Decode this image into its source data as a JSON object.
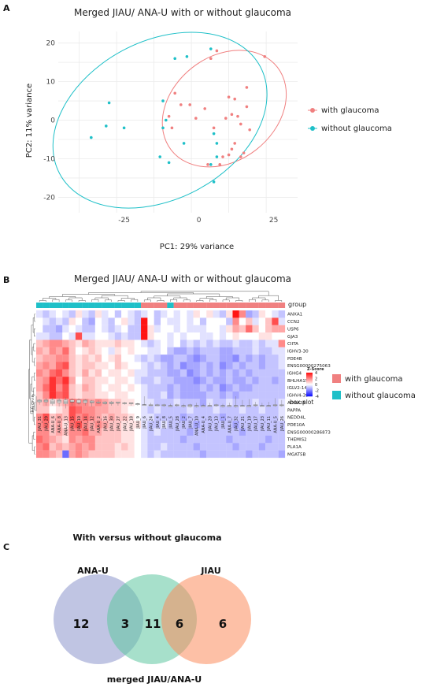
{
  "panels": {
    "a": "A",
    "b": "B",
    "c": "C"
  },
  "colors": {
    "with": "#f08080",
    "without": "#1fc0c8",
    "venn_ana": "#8d96cc",
    "venn_merged": "#5fc7a1",
    "venn_jiau": "#fb8c5d"
  },
  "chart_data": [
    {
      "type": "scatter",
      "title": "Merged JIAU/ ANA-U with or without glaucoma",
      "xlabel": "PC1: 29% variance",
      "ylabel": "PC2: 11% variance",
      "xlim": [
        -47,
        33
      ],
      "ylim": [
        -24,
        23
      ],
      "xticks": [
        -25,
        0,
        25
      ],
      "yticks": [
        20,
        10,
        0,
        -10,
        -20
      ],
      "grid": true,
      "legend_position": "right",
      "series": [
        {
          "name": "with glaucoma",
          "color": "#f08080",
          "points": [
            [
              -8,
              7
            ],
            [
              -6,
              4
            ],
            [
              -3,
              4
            ],
            [
              -10,
              1
            ],
            [
              -9,
              -2
            ],
            [
              -1,
              0.5
            ],
            [
              2,
              3
            ],
            [
              4,
              16
            ],
            [
              6,
              18
            ],
            [
              22,
              16.5
            ],
            [
              10,
              6
            ],
            [
              12,
              5.5
            ],
            [
              16,
              3.5
            ],
            [
              11,
              1.5
            ],
            [
              13,
              1
            ],
            [
              9,
              0.5
            ],
            [
              14,
              -1
            ],
            [
              17,
              -2.5
            ],
            [
              5,
              -2
            ],
            [
              12,
              -6
            ],
            [
              11,
              -7.5
            ],
            [
              10,
              -9
            ],
            [
              8,
              -9.5
            ],
            [
              15,
              -8.5
            ],
            [
              14,
              -9.5
            ],
            [
              7,
              -11.5
            ],
            [
              3,
              -11.5
            ],
            [
              16,
              8.5
            ]
          ]
        },
        {
          "name": "without glaucoma",
          "color": "#1fc0c8",
          "points": [
            [
              -4,
              16.5
            ],
            [
              4,
              18.5
            ],
            [
              -8,
              16
            ],
            [
              -30,
              4.5
            ],
            [
              -12,
              5
            ],
            [
              -11,
              0
            ],
            [
              -31,
              -1.5
            ],
            [
              -25,
              -2
            ],
            [
              -36,
              -4.5
            ],
            [
              -12,
              -2
            ],
            [
              -5,
              -6
            ],
            [
              5,
              -3.5
            ],
            [
              6,
              -6
            ],
            [
              -13,
              -9.5
            ],
            [
              -10,
              -11
            ],
            [
              6,
              -9.5
            ],
            [
              4,
              -11.5
            ],
            [
              5,
              -16
            ]
          ]
        }
      ],
      "annotations": [
        "ellipse: with glaucoma",
        "ellipse: without glaucoma"
      ]
    },
    {
      "type": "heatmap",
      "title": "Merged JIAU/ ANA-U with or without glaucoma",
      "annotation_label": "group",
      "scale_title": "Z-Score",
      "scale_ticks": [
        "4",
        "2",
        "0",
        "-2",
        "-4"
      ],
      "value_range": [
        -4,
        4
      ],
      "boxplot_label": "box plot",
      "box_ticks": [
        "4",
        "2",
        "0",
        "-2",
        "-4"
      ],
      "genes": [
        "ANXA1",
        "CCN2",
        "USP6",
        "GJA3",
        "CIITA",
        "IGHV3-30",
        "PDE4B",
        "ENSG00000275063",
        "IGHG4",
        "BHLHA15",
        "IGLV2-14",
        "IGHV4-39",
        "ADRA2A",
        "PAPPA",
        "NEDD4L",
        "PDE10A",
        "ENSG00000286873",
        "THEMIS2",
        "PLA1A",
        "MGAT5B"
      ],
      "columns": [
        "JIAU_31",
        "JIAU_29",
        "ANA-U_6",
        "ANA-U_8",
        "ANA-U_13",
        "JIAU_15",
        "JIAU_10",
        "JIAU_14",
        "JIAU_12",
        "ANA-U_2",
        "JIAU_16",
        "JIAU_30",
        "JIAU_27",
        "JIAU_22",
        "JIAU_18",
        "JIAU_9",
        "JIAU_6",
        "JIAU_24",
        "JIAU_4",
        "JIAU_8",
        "JIAU_5",
        "JIAU_28",
        "JIAU_2",
        "JIAU_7",
        "ANA-U_10",
        "ANA-U_4",
        "JIAU_20",
        "JIAU_13",
        "JIAU_1",
        "ANA-U_7",
        "JIAU_32",
        "JIAU_21",
        "JIAU_19",
        "JIAU_17",
        "JIAU_23",
        "JIAU_11",
        "ANA-U_5",
        "JIAU_26"
      ],
      "group": [
        "without",
        "without",
        "without",
        "without",
        "without",
        "without",
        "without",
        "without",
        "without",
        "without",
        "without",
        "without",
        "without",
        "without",
        "without",
        "without",
        "with",
        "with",
        "with",
        "with",
        "without",
        "with",
        "with",
        "with",
        "with",
        "with",
        "with",
        "with",
        "with",
        "with",
        "with",
        "with",
        "with",
        "with",
        "with",
        "with",
        "with",
        "with"
      ],
      "legend": [
        {
          "name": "with glaucoma",
          "color": "#f08080"
        },
        {
          "name": "without glaucoma",
          "color": "#1fc0c8"
        }
      ],
      "values": [
        [
          -0.5,
          -1,
          -0.5,
          0,
          -0.5,
          -1,
          0.5,
          -0.5,
          -1,
          0.5,
          -0.5,
          0,
          -1,
          0,
          -0.5,
          -1,
          -0.5,
          0,
          -1,
          -0.5,
          0,
          -0.5,
          0,
          -0.5,
          0.5,
          0,
          0.5,
          -0.5,
          -1,
          0.5,
          4,
          2,
          -1.5,
          -1,
          0.5,
          0,
          -0.5,
          -1
        ],
        [
          0,
          -0.5,
          -1,
          -0.5,
          -1,
          0.5,
          0,
          -1,
          -1.5,
          0,
          -0.5,
          -1,
          0,
          0.5,
          -0.5,
          -1,
          4,
          0,
          -1,
          0,
          -0.5,
          -0.5,
          0,
          -0.5,
          0,
          -1,
          0,
          0,
          0,
          -1,
          2,
          0,
          1,
          -0.5,
          0,
          1,
          3,
          -0.5
        ],
        [
          0,
          -1,
          -1,
          -1.5,
          -0.5,
          0,
          -0.5,
          -1,
          -1,
          0,
          -0.5,
          -1,
          -0.5,
          0,
          -1,
          -1,
          4,
          0.5,
          -0.5,
          0,
          0,
          -0.5,
          0,
          -0.5,
          -0.5,
          -0.5,
          0,
          0,
          -0.5,
          0.5,
          1.5,
          1,
          2.5,
          1,
          0,
          1,
          1.5,
          1.5
        ],
        [
          -0.5,
          -0.5,
          -1,
          -1,
          0,
          -0.5,
          3,
          -0.5,
          -0.5,
          0,
          0,
          -0.5,
          -1,
          -0.5,
          -1,
          -1,
          4,
          0.5,
          0,
          0,
          -0.5,
          0,
          -0.5,
          0,
          0,
          -0.5,
          -0.5,
          0,
          -0.5,
          0,
          0.5,
          0,
          0,
          0,
          0.5,
          0.5,
          0,
          0
        ],
        [
          1,
          1.5,
          2,
          2,
          1.5,
          1,
          0.5,
          1.5,
          1,
          0.5,
          0.5,
          0.5,
          1,
          0.5,
          0.5,
          0,
          -0.5,
          -1,
          -0.5,
          0,
          -0.5,
          0,
          -1,
          -0.5,
          -1,
          -0.5,
          -1,
          -0.5,
          -1,
          -1,
          -0.5,
          -1,
          -1,
          -0.5,
          -1,
          -0.5,
          -0.5,
          2
        ],
        [
          1.5,
          1,
          2,
          1.5,
          2.5,
          1,
          0,
          0.5,
          1,
          0.5,
          0,
          -0.5,
          0.5,
          0,
          0.5,
          0,
          0,
          -0.5,
          -0.5,
          0,
          -1,
          -1.5,
          -1.5,
          -1,
          -1.5,
          -1,
          -1,
          -1,
          -1.5,
          -1.5,
          -1,
          -1,
          -1,
          -0.5,
          -1,
          -1,
          -0.5,
          -0.5
        ],
        [
          1,
          1.5,
          1.5,
          2,
          2,
          1,
          0.5,
          1,
          0.5,
          1,
          0,
          0.5,
          1,
          0,
          0,
          -0.5,
          -1,
          -0.5,
          -1,
          -1.5,
          -1.5,
          -1,
          -1,
          -1.5,
          -2,
          -1.5,
          -1,
          -1,
          -1.5,
          -1.5,
          -2,
          -1,
          -1.5,
          -1,
          -1.5,
          -1,
          -1,
          -0.5
        ],
        [
          1.5,
          2,
          1.5,
          2.5,
          3,
          1,
          0.5,
          1,
          1,
          0.5,
          0.5,
          0,
          1,
          0.5,
          0,
          0,
          -0.5,
          -1,
          -0.5,
          -1,
          -1.5,
          -1,
          -2,
          -1.5,
          -1.5,
          -1,
          -1.5,
          -1,
          -2,
          -1.5,
          -1,
          -1.5,
          -1,
          -1,
          -1.5,
          -1,
          -1,
          -0.5
        ],
        [
          2,
          1.5,
          2.5,
          3,
          2,
          1,
          0.5,
          1.5,
          0.5,
          1,
          0,
          0.5,
          0.5,
          0,
          0.5,
          -0.5,
          -0.5,
          -1,
          -1,
          -1,
          -1.5,
          -1.5,
          -1,
          -2,
          -1.5,
          -1,
          -1.5,
          -1,
          -1.5,
          -1,
          -1.5,
          -1,
          -1.5,
          -1,
          -1,
          -1,
          -1,
          -1
        ],
        [
          1.5,
          2,
          3.5,
          2.5,
          3.5,
          1.5,
          0,
          1,
          1,
          0.5,
          0.5,
          0,
          0.5,
          0.5,
          0,
          -0.5,
          -1,
          -1,
          -0.5,
          -1,
          -1,
          -1.5,
          -1.5,
          -1.5,
          -2,
          -1.5,
          -1,
          -1.5,
          -1.5,
          -1,
          -1.5,
          -1.5,
          -1,
          -1.5,
          -1,
          -1,
          -1.5,
          -1
        ],
        [
          1.5,
          2.5,
          3.5,
          2,
          3,
          1,
          0.5,
          1.5,
          1,
          0.5,
          0,
          0.5,
          0.5,
          0,
          0.5,
          0,
          -0.5,
          -1,
          -1,
          -1,
          -1.5,
          -1,
          -1.5,
          -1.5,
          -1.5,
          -1,
          -1.5,
          -1,
          -2,
          -1.5,
          -1,
          -1.5,
          -1.5,
          -1,
          -1,
          -1,
          -1,
          -1
        ],
        [
          1,
          2,
          3.5,
          2.5,
          3,
          1,
          0.5,
          1,
          1,
          0.5,
          0.5,
          0,
          0.5,
          0.5,
          0,
          0,
          -0.5,
          -1,
          -1,
          -0.5,
          -1.5,
          -1,
          -1.5,
          -1.5,
          -1.5,
          -1.5,
          -1,
          -1,
          -1.5,
          -1,
          -1.5,
          -1,
          -1,
          -1,
          -1,
          -1,
          -1,
          -1
        ],
        [
          1,
          1.5,
          0.5,
          1,
          1.5,
          2.5,
          2,
          2,
          1.5,
          2,
          1.5,
          1,
          1,
          0.5,
          0.5,
          0,
          -0.5,
          -0.5,
          -1,
          -1,
          -1,
          -0.5,
          -1,
          -1,
          -1,
          -1.5,
          -0.5,
          -1,
          -1,
          -0.5,
          -1,
          -1,
          -1,
          -0.5,
          -1,
          -1,
          -1,
          -0.5
        ],
        [
          1,
          1,
          0,
          0.5,
          1,
          3,
          2.5,
          2,
          2,
          1.5,
          1.5,
          1,
          1,
          0.5,
          0,
          0,
          -0.5,
          -1,
          -0.5,
          -1,
          -1,
          -1,
          -1,
          -0.5,
          -1,
          -1,
          -1,
          -0.5,
          -1,
          -1,
          -1,
          -0.5,
          -1,
          -1,
          -0.5,
          -1,
          -1,
          -0.5
        ],
        [
          2,
          3,
          1,
          1.5,
          1,
          3,
          2,
          2.5,
          2,
          1.5,
          1,
          1.5,
          1,
          1,
          0.5,
          0,
          -0.5,
          -0.5,
          -1,
          -1,
          -1,
          -1,
          -1.5,
          -1,
          -1,
          -1,
          -1,
          -1,
          -1.5,
          -1,
          -1,
          -1,
          -1,
          -1,
          -1,
          -1,
          -1,
          -0.5
        ],
        [
          2,
          2.5,
          1,
          1.5,
          0.5,
          2.5,
          3,
          2,
          1.5,
          2,
          1.5,
          1,
          1,
          0.5,
          0.5,
          0.5,
          -0.5,
          -1,
          -1,
          -0.5,
          -1,
          -1,
          -1,
          -1,
          -1.5,
          -1,
          -1,
          -1,
          -1,
          -1,
          -1.5,
          -1,
          -1,
          -1,
          -1,
          -1,
          -1,
          -1
        ],
        [
          2,
          2,
          1,
          1.5,
          1,
          2,
          2,
          2.5,
          1.5,
          1.5,
          1,
          1,
          1,
          0.5,
          0.5,
          0,
          -0.5,
          -1,
          -0.5,
          -1,
          -1,
          -1,
          -1,
          -1.5,
          -1,
          -1,
          -1,
          -1,
          -1,
          -1,
          -1,
          -1.5,
          -1,
          -1,
          -1,
          -1,
          -1,
          -1
        ],
        [
          2.5,
          2,
          1.5,
          1,
          0.5,
          2,
          1.5,
          2,
          2,
          1,
          1,
          1,
          1,
          0.5,
          0.5,
          0,
          -0.5,
          -1,
          -1,
          -1,
          -1,
          -1,
          -1.5,
          -1,
          -1,
          -1,
          -1,
          -1,
          -1,
          -1.5,
          -1,
          -1,
          -1,
          -1,
          -1,
          -1.5,
          -1,
          -1
        ],
        [
          2,
          2.5,
          1,
          1.5,
          1,
          1.5,
          2,
          1.5,
          2,
          1,
          1,
          1,
          0.5,
          1,
          0.5,
          0,
          -0.5,
          -1,
          -1,
          -0.5,
          -1,
          -1,
          -1,
          -1,
          -1.5,
          -1,
          -1,
          -1,
          -1,
          -1,
          -1.5,
          -1,
          -1,
          -1,
          -1.5,
          -1,
          -1,
          -1
        ],
        [
          2,
          2,
          1.5,
          1,
          -2.5,
          1.5,
          2,
          1.5,
          1,
          1,
          1,
          1,
          0.5,
          0.5,
          0.5,
          0,
          -0.5,
          -1,
          -0.5,
          -1,
          -1,
          -1,
          -1,
          -1,
          -1,
          -1.5,
          -1,
          -1,
          -1,
          -1,
          -1,
          -1,
          -1.5,
          -1,
          -1,
          -1,
          -1,
          -1.5
        ]
      ]
    },
    {
      "type": "venn",
      "title": "With versus without glaucoma",
      "sets": [
        {
          "name": "ANA-U",
          "color": "#8d96cc"
        },
        {
          "name": "merged JIAU/ANA-U",
          "color": "#5fc7a1"
        },
        {
          "name": "JIAU",
          "color": "#fb8c5d"
        }
      ],
      "regions": [
        {
          "sets": [
            "ANA-U"
          ],
          "value": "12"
        },
        {
          "sets": [
            "ANA-U",
            "merged JIAU/ANA-U"
          ],
          "value": "3"
        },
        {
          "sets": [
            "merged JIAU/ANA-U"
          ],
          "value": "11"
        },
        {
          "sets": [
            "merged JIAU/ANA-U",
            "JIAU"
          ],
          "value": "6"
        },
        {
          "sets": [
            "JIAU"
          ],
          "value": "6"
        }
      ]
    }
  ]
}
